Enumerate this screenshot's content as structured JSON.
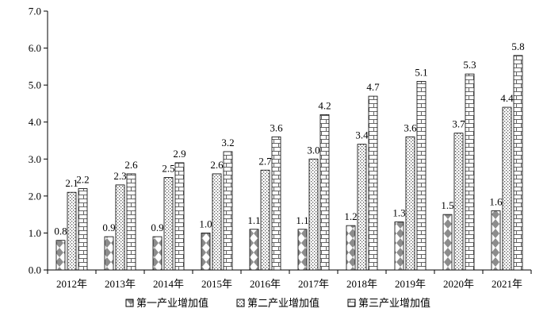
{
  "chart_data": {
    "type": "bar",
    "categories": [
      "2012年",
      "2013年",
      "2014年",
      "2015年",
      "2016年",
      "2017年",
      "2018年",
      "2019年",
      "2020年",
      "2021年"
    ],
    "series": [
      {
        "name": "第一产业增加值",
        "values": [
          0.8,
          0.9,
          0.9,
          1.0,
          1.1,
          1.1,
          1.2,
          1.3,
          1.5,
          1.6
        ],
        "pattern": "diamond"
      },
      {
        "name": "第二产业增加值",
        "values": [
          2.1,
          2.3,
          2.5,
          2.6,
          2.7,
          3.0,
          3.4,
          3.6,
          3.7,
          4.4
        ],
        "pattern": "dots"
      },
      {
        "name": "第三产业增加值",
        "values": [
          2.2,
          2.6,
          2.9,
          3.2,
          3.6,
          4.2,
          4.7,
          5.1,
          5.3,
          5.8
        ],
        "pattern": "brick"
      }
    ],
    "data_labels": [
      [
        "0.8",
        "0.9",
        "0.9",
        "1.0",
        "1.1",
        "1.1",
        "1.2",
        "1.3",
        "1.5",
        "1.6"
      ],
      [
        "2.1",
        "2.3",
        "2.5",
        "2.6",
        "2.7",
        "3.0",
        "3.4",
        "3.6",
        "3.7",
        "4.4"
      ],
      [
        "2.2",
        "2.6",
        "2.9",
        "3.2",
        "3.6",
        "4.2",
        "4.7",
        "5.1",
        "5.3",
        "5.8"
      ]
    ],
    "yticks": [
      "0.0",
      "1.0",
      "2.0",
      "3.0",
      "4.0",
      "5.0",
      "6.0",
      "7.0"
    ],
    "ylim": [
      0,
      7
    ],
    "grid": false,
    "legend_position": "bottom",
    "title": "",
    "xlabel": "",
    "ylabel": ""
  }
}
